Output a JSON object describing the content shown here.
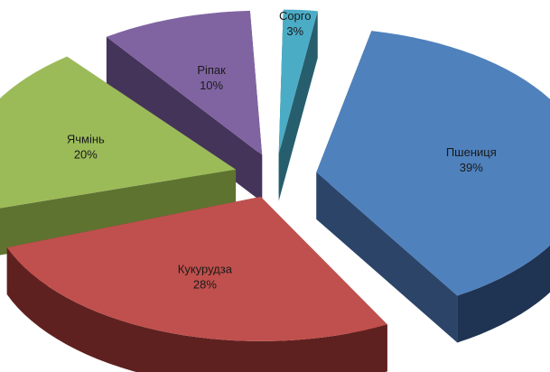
{
  "chart_data": {
    "type": "pie",
    "style": "3d-exploded",
    "slices": [
      {
        "label": "Пшениця",
        "value": 39,
        "value_label": "39%",
        "top": "#4f81bd",
        "side": "#1f3352",
        "inner": "#2b4468"
      },
      {
        "label": "Кукурудза",
        "value": 28,
        "value_label": "28%",
        "top": "#c0504d",
        "side": "#5e2120",
        "inner": "#7a2e2c"
      },
      {
        "label": "Ячмінь",
        "value": 20,
        "value_label": "20%",
        "top": "#9bbb59",
        "side": "#4a5c25",
        "inner": "#5e7330"
      },
      {
        "label": "Ріпак",
        "value": 10,
        "value_label": "10%",
        "top": "#8064a2",
        "side": "#352845",
        "inner": "#45345a"
      },
      {
        "label": "Сорго",
        "value": 3,
        "value_label": "3%",
        "top": "#4bacc6",
        "side": "#1f4b57",
        "inner": "#275e6d"
      }
    ]
  }
}
